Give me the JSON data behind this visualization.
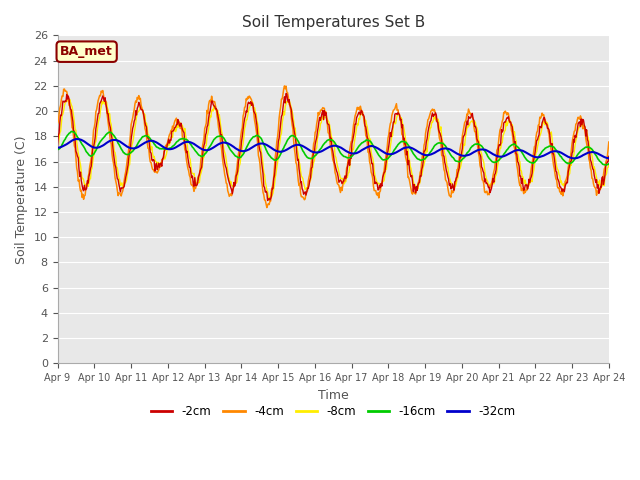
{
  "title": "Soil Temperatures Set B",
  "xlabel": "Time",
  "ylabel": "Soil Temperature (C)",
  "annotation": "BA_met",
  "ylim": [
    0,
    26
  ],
  "yticks": [
    0,
    2,
    4,
    6,
    8,
    10,
    12,
    14,
    16,
    18,
    20,
    22,
    24,
    26
  ],
  "xtick_labels": [
    "Apr 9",
    "Apr 10",
    "Apr 11",
    "Apr 12",
    "Apr 13",
    "Apr 14",
    "Apr 15",
    "Apr 16",
    "Apr 17",
    "Apr 18",
    "Apr 19",
    "Apr 20",
    "Apr 21",
    "Apr 22",
    "Apr 23",
    "Apr 24"
  ],
  "colors": {
    "-2cm": "#cc0000",
    "-4cm": "#ff8800",
    "-8cm": "#ffee00",
    "-16cm": "#00cc00",
    "-32cm": "#0000cc"
  },
  "background_color": "#ffffff",
  "plot_bg_color": "#e8e8e8",
  "grid_color": "#ffffff",
  "n_days": 15,
  "samples_per_day": 48,
  "start_day": 9
}
